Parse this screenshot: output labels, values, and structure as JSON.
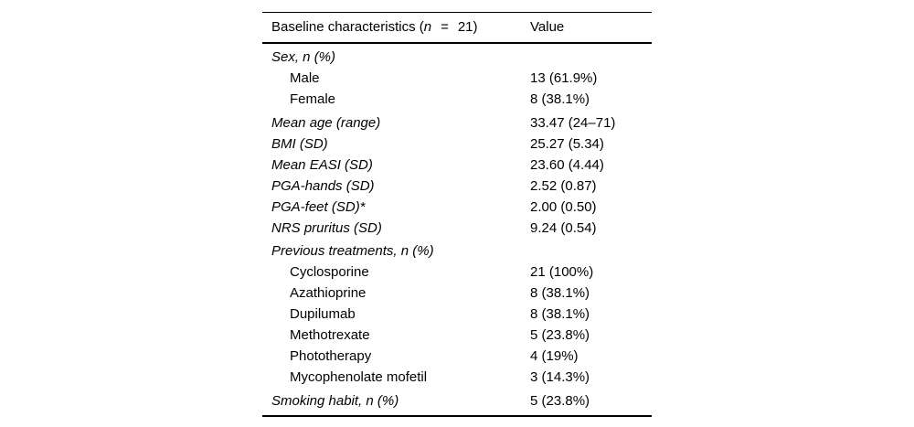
{
  "table": {
    "title_prefix": "Baseline characteristics (",
    "title_n": "n",
    "title_eq": "=",
    "title_count": "21)",
    "value_header": "Value",
    "rows": [
      {
        "label": "Sex, n (%)",
        "value": "",
        "kind": "category"
      },
      {
        "label": "Male",
        "value": "13 (61.9%)",
        "kind": "item"
      },
      {
        "label": "Female",
        "value": "8 (38.1%)",
        "kind": "item"
      },
      {
        "label": "Mean age (range)",
        "value": "33.47 (24–71)",
        "kind": "category"
      },
      {
        "label": "BMI (SD)",
        "value": "25.27 (5.34)",
        "kind": "category"
      },
      {
        "label": "Mean EASI (SD)",
        "value": "23.60 (4.44)",
        "kind": "category"
      },
      {
        "label": "PGA-hands (SD)",
        "value": "2.52 (0.87)",
        "kind": "category"
      },
      {
        "label": "PGA-feet (SD)*",
        "value": "2.00 (0.50)",
        "kind": "category"
      },
      {
        "label": "NRS pruritus (SD)",
        "value": "9.24 (0.54)",
        "kind": "category"
      },
      {
        "label": "Previous treatments, n (%)",
        "value": "",
        "kind": "category"
      },
      {
        "label": "Cyclosporine",
        "value": "21 (100%)",
        "kind": "item"
      },
      {
        "label": "Azathioprine",
        "value": "8 (38.1%)",
        "kind": "item"
      },
      {
        "label": "Dupilumab",
        "value": "8 (38.1%)",
        "kind": "item"
      },
      {
        "label": "Methotrexate",
        "value": "5 (23.8%)",
        "kind": "item"
      },
      {
        "label": "Phototherapy",
        "value": "4 (19%)",
        "kind": "item"
      },
      {
        "label": "Mycophenolate mofetil",
        "value": "3 (14.3%)",
        "kind": "item"
      },
      {
        "label": "Smoking habit, n (%)",
        "value": "5 (23.8%)",
        "kind": "category"
      }
    ]
  }
}
